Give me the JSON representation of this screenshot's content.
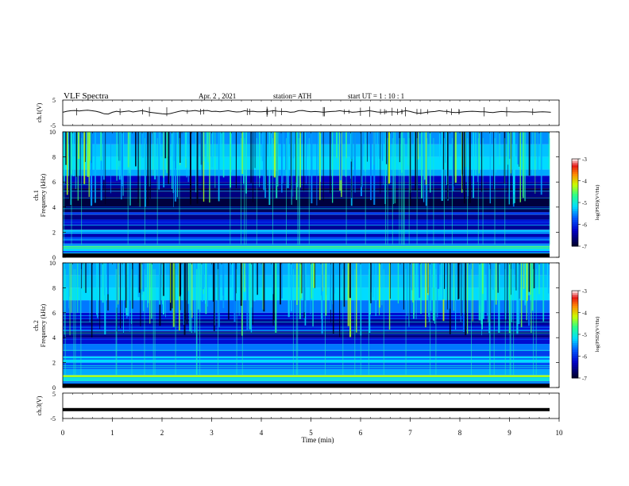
{
  "header": {
    "title": "VLF  Spectra",
    "date": "Apr. 2  , 2021",
    "station": "station= ATH",
    "start_ut": "start  UT  =   1  : 10 : 1"
  },
  "chart_data": [
    {
      "type": "line",
      "name": "ch1-waveform",
      "ylabel": "ch.1(V)",
      "yticks": [
        "5",
        "-5"
      ],
      "ylim": [
        -5,
        5
      ],
      "xlim": [
        0,
        10
      ],
      "samples_per_min": 12,
      "y": [
        0.2,
        0.6,
        0.8,
        0.9,
        0.7,
        0.9,
        1.0,
        0.8,
        0.6,
        0.2,
        -0.4,
        -0.5,
        0.2,
        0.6,
        0.3,
        0.5,
        0.7,
        0.3,
        0.6,
        0.8,
        0.6,
        0.2,
        0.0,
        -0.2,
        -0.4,
        -0.5,
        -0.3,
        0.1,
        0.5,
        0.8,
        0.6,
        0.7,
        0.9,
        0.6,
        0.8,
        0.9,
        0.5,
        0.6,
        0.4,
        0.6,
        0.8,
        0.5,
        0.3,
        0.4,
        0.8,
        0.5,
        0.6,
        0.4,
        0.4,
        0.5,
        0.6,
        0.8,
        0.6,
        0.5,
        0.5,
        0.2,
        0.3,
        0.8,
        0.9,
        0.6,
        0.4,
        0.5,
        0.4,
        0.2,
        0.4,
        0.5,
        0.6,
        0.8,
        0.5,
        0.5,
        0.2,
        0.3,
        0.5,
        0.6,
        0.8,
        0.6,
        0.3,
        0.2,
        0.3,
        0.4,
        0.4,
        0.2,
        0.5,
        0.8,
        0.5,
        0.1,
        -0.2,
        -0.1,
        0.2,
        0.4,
        0.5,
        0.8,
        0.6,
        0.5,
        0.2,
        0.1,
        0.2,
        0.4,
        0.5,
        0.6,
        0.5,
        0.4,
        0.4,
        0.2,
        0.1,
        0.3,
        0.5,
        0.4,
        0.4,
        0.3,
        0.3,
        0.4,
        0.4,
        0.3,
        0.2,
        0.3,
        0.4,
        0.3,
        0.2
      ]
    },
    {
      "type": "heatmap",
      "name": "ch1-spectrogram",
      "ylabel": "ch.1\nFrequency (kHz)",
      "yticks": [
        "10",
        "8",
        "6",
        "4",
        "2",
        "0"
      ],
      "ylim": [
        0,
        10
      ],
      "xlim": [
        0,
        10
      ],
      "colorbar": {
        "label": "log(PSD)(V²/Hz)",
        "ticks": [
          "-3",
          "-4",
          "-5",
          "-6",
          "-7"
        ],
        "range": [
          -7,
          -3
        ]
      },
      "bands_khz": [
        [
          0,
          0.3,
          -7
        ],
        [
          0.3,
          0.5,
          -6.0
        ],
        [
          0.5,
          0.7,
          -5.2
        ],
        [
          0.7,
          0.9,
          -4.6
        ],
        [
          0.9,
          1.1,
          -5.5
        ],
        [
          1.1,
          1.4,
          -6.2
        ],
        [
          1.4,
          1.6,
          -5.8
        ],
        [
          1.6,
          1.9,
          -6.4
        ],
        [
          1.9,
          2.2,
          -5.3
        ],
        [
          2.2,
          2.6,
          -6.5
        ],
        [
          2.6,
          3.0,
          -6.2
        ],
        [
          3.0,
          3.4,
          -6.6
        ],
        [
          3.4,
          3.6,
          -6.0
        ],
        [
          3.6,
          4.0,
          -6.8
        ],
        [
          4.0,
          4.8,
          -6.9
        ],
        [
          4.8,
          5.2,
          -6.6
        ],
        [
          5.2,
          5.5,
          -6.8
        ],
        [
          5.5,
          6.0,
          -6.5
        ],
        [
          6.0,
          6.5,
          -6.3
        ],
        [
          6.5,
          7.0,
          -5.4
        ],
        [
          7.0,
          8.0,
          -5.2
        ],
        [
          8.0,
          9.0,
          -5.3
        ],
        [
          9.0,
          10.0,
          -5.5
        ]
      ]
    },
    {
      "type": "heatmap",
      "name": "ch2-spectrogram",
      "ylabel": "ch.2\nFrequency (kHz)",
      "yticks": [
        "10",
        "8",
        "6",
        "4",
        "2",
        "0"
      ],
      "ylim": [
        0,
        10
      ],
      "xlim": [
        0,
        10
      ],
      "colorbar": {
        "label": "log(PSD)(V²/Hz)",
        "ticks": [
          "-3",
          "-4",
          "-5",
          "-6",
          "-7"
        ],
        "range": [
          -7,
          -3
        ]
      },
      "bands_khz": [
        [
          0,
          0.2,
          -7
        ],
        [
          0.2,
          0.5,
          -5.8
        ],
        [
          0.5,
          0.8,
          -5.0
        ],
        [
          0.8,
          1.0,
          -4.3
        ],
        [
          1.0,
          1.5,
          -5.4
        ],
        [
          1.5,
          2.0,
          -5.8
        ],
        [
          2.0,
          2.5,
          -5.2
        ],
        [
          2.5,
          3.0,
          -5.9
        ],
        [
          3.0,
          3.5,
          -5.6
        ],
        [
          3.5,
          4.0,
          -6.2
        ],
        [
          4.0,
          4.5,
          -6.6
        ],
        [
          4.5,
          5.0,
          -6.2
        ],
        [
          5.0,
          5.5,
          -6.5
        ],
        [
          5.5,
          6.0,
          -6.2
        ],
        [
          6.0,
          7.0,
          -5.6
        ],
        [
          7.0,
          8.0,
          -5.2
        ],
        [
          8.0,
          9.0,
          -5.3
        ],
        [
          9.0,
          10.0,
          -5.4
        ]
      ]
    },
    {
      "type": "line",
      "name": "ch3-waveform",
      "ylabel": "ch.3(V)",
      "yticks": [
        "5",
        "-5"
      ],
      "ylim": [
        -5,
        5
      ],
      "xlim": [
        0,
        10
      ],
      "constant_y": -1.5,
      "xlabel": "Time  (min)",
      "xticks": [
        "0",
        "1",
        "2",
        "3",
        "4",
        "5",
        "6",
        "7",
        "8",
        "9",
        "10"
      ]
    }
  ]
}
